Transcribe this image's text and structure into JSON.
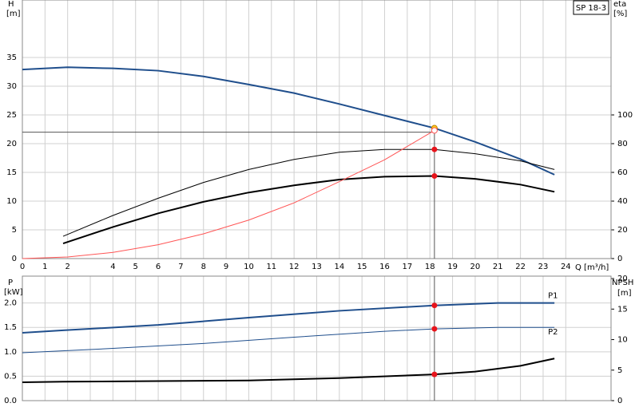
{
  "chart_data": [
    {
      "type": "line",
      "title": "SP 18-3",
      "xlabel": "Q [m³/h]",
      "ylabel": "H",
      "yunit": "[m]",
      "y2label": "eta",
      "y2unit": "[%]",
      "xlim": [
        0,
        26
      ],
      "xticks": [
        0,
        1,
        2,
        4,
        5,
        6,
        7,
        8,
        9,
        10,
        11,
        12,
        13,
        14,
        15,
        16,
        17,
        18,
        19,
        20,
        21,
        22,
        23,
        24
      ],
      "ylim": [
        0,
        45
      ],
      "yticks": [
        0,
        5,
        10,
        15,
        20,
        25,
        30,
        35
      ],
      "y2lim": [
        0,
        180
      ],
      "y2ticks": [
        0,
        20,
        40,
        60,
        80,
        100
      ],
      "grid": true,
      "duty_q": 18.2,
      "duty_h": 22,
      "series": [
        {
          "color": "#1f4e8c",
          "width": 2,
          "x": [
            0,
            2,
            4,
            6,
            8,
            10,
            12,
            14,
            16,
            18.2,
            20,
            22,
            23.5
          ],
          "values": [
            32.9,
            33.3,
            33.1,
            32.7,
            31.7,
            30.3,
            28.8,
            26.9,
            24.9,
            22.7,
            20.3,
            17.3,
            14.6
          ],
          "marker_color": "#ffd11a"
        },
        {
          "color": "#000000",
          "width": 1,
          "axis": "y2",
          "x": [
            1.8,
            4,
            6,
            8,
            10,
            12,
            14,
            16,
            18.2,
            20,
            22,
            23.5
          ],
          "values": [
            15.5,
            30,
            42,
            53,
            62,
            69,
            74,
            76,
            76,
            73,
            68,
            62
          ],
          "marker_color": "#e8141c"
        },
        {
          "color": "#000000",
          "width": 2,
          "axis": "y2",
          "x": [
            1.8,
            4,
            6,
            8,
            10,
            12,
            14,
            16,
            18.2,
            20,
            22,
            23.5
          ],
          "values": [
            10.5,
            22,
            31.5,
            39.5,
            46,
            51,
            55,
            57,
            57.5,
            55.5,
            51.5,
            46.5
          ],
          "marker_color": "#e8141c"
        },
        {
          "color": "#ff5555",
          "width": 1,
          "x": [
            0,
            2,
            4,
            6,
            8,
            10,
            12,
            14,
            16,
            18.2
          ],
          "values": [
            0,
            0.27,
            1.08,
            2.42,
            4.3,
            6.7,
            9.7,
            13.4,
            17.2,
            22.3
          ],
          "marker_color": "#ffffff"
        }
      ]
    },
    {
      "type": "line",
      "ylabel": "P",
      "yunit": "[kW]",
      "y2label": "NPSH",
      "y2unit": "[m]",
      "xlim": [
        0,
        26
      ],
      "xticks": [
        0,
        1,
        2,
        3,
        4,
        5,
        6,
        7,
        8,
        9,
        10,
        11,
        12,
        13,
        14,
        15,
        16,
        17,
        18,
        19,
        20,
        21,
        22,
        23,
        24
      ],
      "ylim": [
        0,
        2.55
      ],
      "yticks": [
        {
          "value": 0,
          "label": "0.0"
        },
        0.5,
        {
          "value": 1,
          "label": "1.0"
        },
        1.5,
        {
          "value": 2,
          "label": "2.0"
        }
      ],
      "y2lim": [
        0,
        20.4
      ],
      "y2ticks": [
        0,
        5,
        10,
        15,
        20
      ],
      "grid": true,
      "duty_q": 18.2,
      "series": [
        {
          "name": "P1",
          "color": "#1f4e8c",
          "width": 2,
          "x": [
            0,
            1.8,
            6,
            10,
            14,
            18.2,
            21,
            23.5
          ],
          "values": [
            1.39,
            1.44,
            1.55,
            1.7,
            1.84,
            1.95,
            2.0,
            2.0
          ],
          "marker_color": "#e8141c"
        },
        {
          "name": "P2",
          "color": "#1f4e8c",
          "width": 1,
          "x": [
            0,
            4,
            8,
            12,
            16,
            18.2,
            21,
            23.5
          ],
          "values": [
            0.98,
            1.07,
            1.17,
            1.3,
            1.42,
            1.47,
            1.5,
            1.5
          ],
          "marker_color": "#e8141c"
        },
        {
          "color": "#000000",
          "width": 2,
          "axis": "y2",
          "x": [
            0,
            1.8,
            6,
            10,
            14,
            18.2,
            20,
            22,
            23.5
          ],
          "values": [
            3.0,
            3.1,
            3.2,
            3.3,
            3.7,
            4.3,
            4.75,
            5.7,
            6.9
          ],
          "marker_color": "#e8141c"
        }
      ]
    }
  ]
}
